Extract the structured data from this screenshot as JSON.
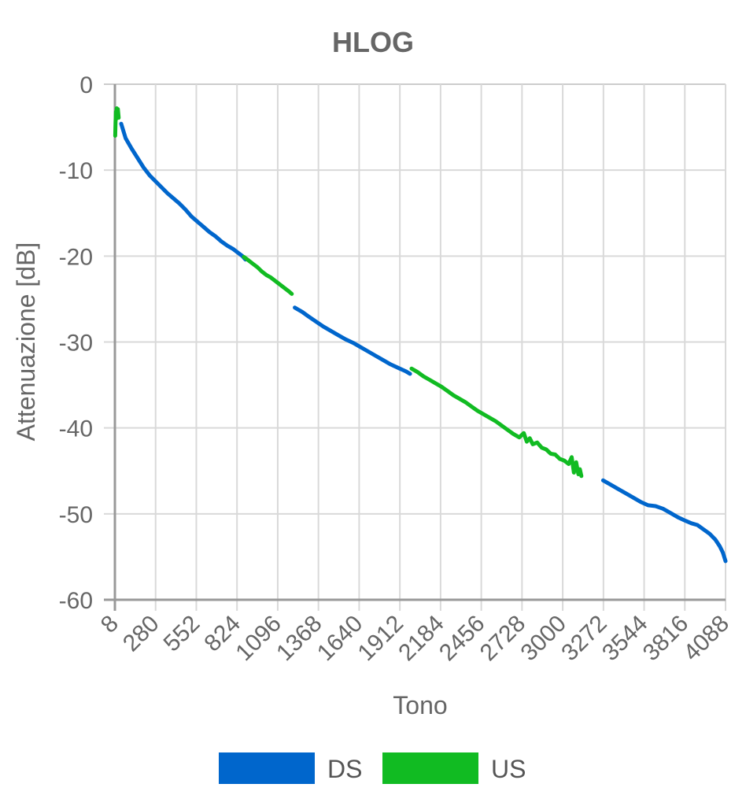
{
  "chart_data": {
    "type": "line",
    "title": "HLOG",
    "xlabel": "Tono",
    "ylabel": "Attenuazione [dB]",
    "x_ticks": [
      "8",
      "280",
      "552",
      "824",
      "1096",
      "1368",
      "1640",
      "1912",
      "2184",
      "2456",
      "2728",
      "3000",
      "3272",
      "3544",
      "3816",
      "4088"
    ],
    "y_ticks": [
      "0",
      "-10",
      "-20",
      "-30",
      "-40",
      "-50",
      "-60"
    ],
    "xlim": [
      8,
      4088
    ],
    "ylim": [
      -60,
      0
    ],
    "grid": true,
    "legend_position": "bottom",
    "series": [
      {
        "name": "DS",
        "color": "#0066cc",
        "segments": [
          [
            [
              50,
              -4.6
            ],
            [
              80,
              -6.3
            ],
            [
              120,
              -7.5
            ],
            [
              160,
              -8.6
            ],
            [
              200,
              -9.7
            ],
            [
              240,
              -10.6
            ],
            [
              280,
              -11.3
            ],
            [
              320,
              -12.0
            ],
            [
              360,
              -12.7
            ],
            [
              400,
              -13.3
            ],
            [
              440,
              -13.9
            ],
            [
              480,
              -14.6
            ],
            [
              520,
              -15.4
            ],
            [
              560,
              -16.0
            ],
            [
              600,
              -16.6
            ],
            [
              640,
              -17.2
            ],
            [
              680,
              -17.7
            ],
            [
              720,
              -18.3
            ],
            [
              760,
              -18.8
            ],
            [
              800,
              -19.2
            ],
            [
              830,
              -19.6
            ],
            [
              860,
              -20.0
            ],
            [
              880,
              -20.4
            ]
          ],
          [
            [
              1210,
              -26.0
            ],
            [
              1260,
              -26.5
            ],
            [
              1300,
              -27.0
            ],
            [
              1350,
              -27.6
            ],
            [
              1400,
              -28.2
            ],
            [
              1450,
              -28.7
            ],
            [
              1500,
              -29.2
            ],
            [
              1550,
              -29.7
            ],
            [
              1600,
              -30.1
            ],
            [
              1650,
              -30.6
            ],
            [
              1700,
              -31.1
            ],
            [
              1750,
              -31.6
            ],
            [
              1800,
              -32.1
            ],
            [
              1850,
              -32.6
            ],
            [
              1900,
              -33.0
            ],
            [
              1950,
              -33.4
            ],
            [
              1980,
              -33.7
            ]
          ],
          [
            [
              3270,
              -46.1
            ],
            [
              3320,
              -46.6
            ],
            [
              3370,
              -47.1
            ],
            [
              3420,
              -47.6
            ],
            [
              3470,
              -48.1
            ],
            [
              3520,
              -48.6
            ],
            [
              3570,
              -49.0
            ],
            [
              3620,
              -49.1
            ],
            [
              3670,
              -49.4
            ],
            [
              3720,
              -49.9
            ],
            [
              3770,
              -50.4
            ],
            [
              3820,
              -50.8
            ],
            [
              3860,
              -51.1
            ],
            [
              3900,
              -51.3
            ],
            [
              3940,
              -51.8
            ],
            [
              3980,
              -52.3
            ],
            [
              4020,
              -53.0
            ],
            [
              4050,
              -53.8
            ],
            [
              4070,
              -54.5
            ],
            [
              4088,
              -55.5
            ]
          ]
        ]
      },
      {
        "name": "US",
        "color": "#11bb22",
        "segments": [
          [
            [
              10,
              -6.0
            ],
            [
              12,
              -4.5
            ],
            [
              15,
              -3.2
            ],
            [
              18,
              -4.0
            ],
            [
              20,
              -2.8
            ],
            [
              24,
              -3.2
            ],
            [
              28,
              -2.9
            ],
            [
              33,
              -3.9
            ]
          ],
          [
            [
              870,
              -20.1
            ],
            [
              900,
              -20.5
            ],
            [
              930,
              -20.9
            ],
            [
              960,
              -21.3
            ],
            [
              990,
              -21.8
            ],
            [
              1020,
              -22.2
            ],
            [
              1050,
              -22.5
            ],
            [
              1080,
              -22.9
            ],
            [
              1110,
              -23.3
            ],
            [
              1140,
              -23.7
            ],
            [
              1170,
              -24.1
            ],
            [
              1190,
              -24.4
            ]
          ],
          [
            [
              1990,
              -33.1
            ],
            [
              2030,
              -33.5
            ],
            [
              2070,
              -34.0
            ],
            [
              2110,
              -34.4
            ],
            [
              2150,
              -34.8
            ],
            [
              2190,
              -35.2
            ],
            [
              2230,
              -35.7
            ],
            [
              2270,
              -36.2
            ],
            [
              2310,
              -36.6
            ],
            [
              2350,
              -37.0
            ],
            [
              2390,
              -37.5
            ],
            [
              2430,
              -38.0
            ],
            [
              2470,
              -38.4
            ],
            [
              2510,
              -38.8
            ],
            [
              2550,
              -39.2
            ],
            [
              2590,
              -39.7
            ],
            [
              2630,
              -40.2
            ],
            [
              2670,
              -40.7
            ],
            [
              2710,
              -41.1
            ],
            [
              2740,
              -40.6
            ],
            [
              2760,
              -41.6
            ],
            [
              2780,
              -41.2
            ],
            [
              2800,
              -41.9
            ],
            [
              2830,
              -41.7
            ],
            [
              2860,
              -42.3
            ],
            [
              2890,
              -42.5
            ],
            [
              2920,
              -43.0
            ],
            [
              2950,
              -43.1
            ],
            [
              2980,
              -43.6
            ],
            [
              3010,
              -43.8
            ],
            [
              3040,
              -44.2
            ],
            [
              3060,
              -43.4
            ],
            [
              3075,
              -45.2
            ],
            [
              3090,
              -44.0
            ],
            [
              3105,
              -45.4
            ],
            [
              3115,
              -44.8
            ],
            [
              3125,
              -45.6
            ]
          ]
        ]
      }
    ]
  }
}
